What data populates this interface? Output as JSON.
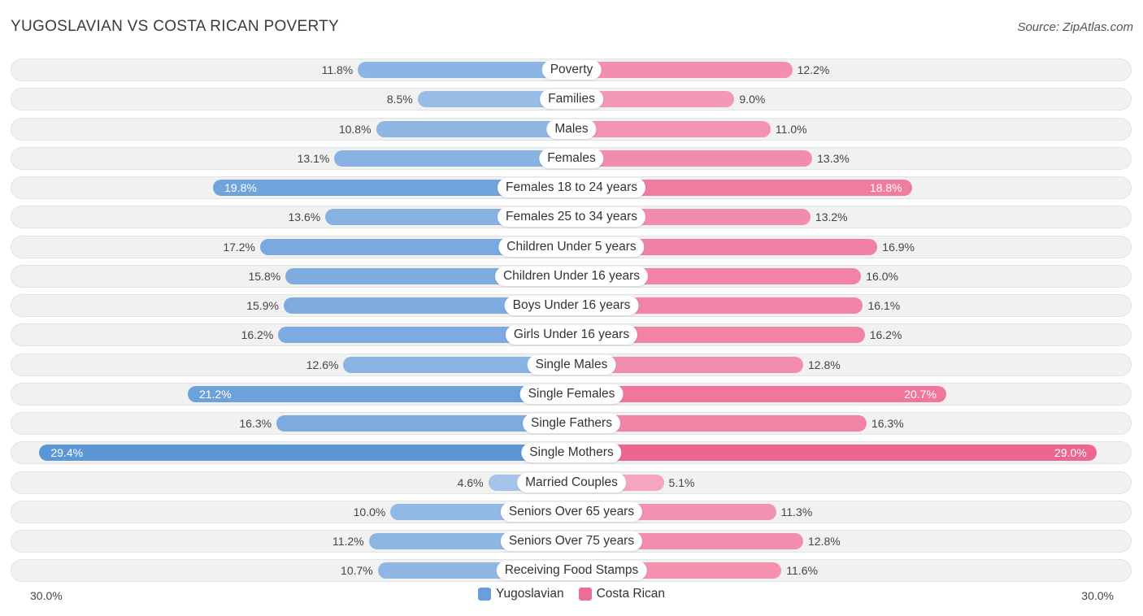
{
  "header": {
    "title": "YUGOSLAVIAN VS COSTA RICAN POVERTY",
    "source": "Source: ZipAtlas.com"
  },
  "colors": {
    "left_base": "#a7c5ea",
    "left_strong": "#5b97d6",
    "right_base": "#f5a8c0",
    "right_strong": "#ee6690"
  },
  "chart_data": {
    "type": "bar",
    "orientation": "horizontal-diverging",
    "title": "YUGOSLAVIAN VS COSTA RICAN POVERTY",
    "categories": [
      "Poverty",
      "Families",
      "Males",
      "Females",
      "Females 18 to 24 years",
      "Females 25 to 34 years",
      "Children Under 5 years",
      "Children Under 16 years",
      "Boys Under 16 years",
      "Girls Under 16 years",
      "Single Males",
      "Single Females",
      "Single Fathers",
      "Single Mothers",
      "Married Couples",
      "Seniors Over 65 years",
      "Seniors Over 75 years",
      "Receiving Food Stamps"
    ],
    "series": [
      {
        "name": "Yugoslavian",
        "values": [
          11.8,
          8.5,
          10.8,
          13.1,
          19.8,
          13.6,
          17.2,
          15.8,
          15.9,
          16.2,
          12.6,
          21.2,
          16.3,
          29.4,
          4.6,
          10.0,
          11.2,
          10.7
        ],
        "labels": [
          "11.8%",
          "8.5%",
          "10.8%",
          "13.1%",
          "19.8%",
          "13.6%",
          "17.2%",
          "15.8%",
          "15.9%",
          "16.2%",
          "12.6%",
          "21.2%",
          "16.3%",
          "29.4%",
          "4.6%",
          "10.0%",
          "11.2%",
          "10.7%"
        ]
      },
      {
        "name": "Costa Rican",
        "values": [
          12.2,
          9.0,
          11.0,
          13.3,
          18.8,
          13.2,
          16.9,
          16.0,
          16.1,
          16.2,
          12.8,
          20.7,
          16.3,
          29.0,
          5.1,
          11.3,
          12.8,
          11.6
        ],
        "labels": [
          "12.2%",
          "9.0%",
          "11.0%",
          "13.3%",
          "18.8%",
          "13.2%",
          "16.9%",
          "16.0%",
          "16.1%",
          "16.2%",
          "12.8%",
          "20.7%",
          "16.3%",
          "29.0%",
          "5.1%",
          "11.3%",
          "12.8%",
          "11.6%"
        ]
      }
    ],
    "xlim": [
      0,
      30
    ],
    "axis_labels": {
      "left": "30.0%",
      "right": "30.0%"
    },
    "legend": [
      "Yugoslavian",
      "Costa Rican"
    ],
    "legend_position": "bottom-center"
  }
}
